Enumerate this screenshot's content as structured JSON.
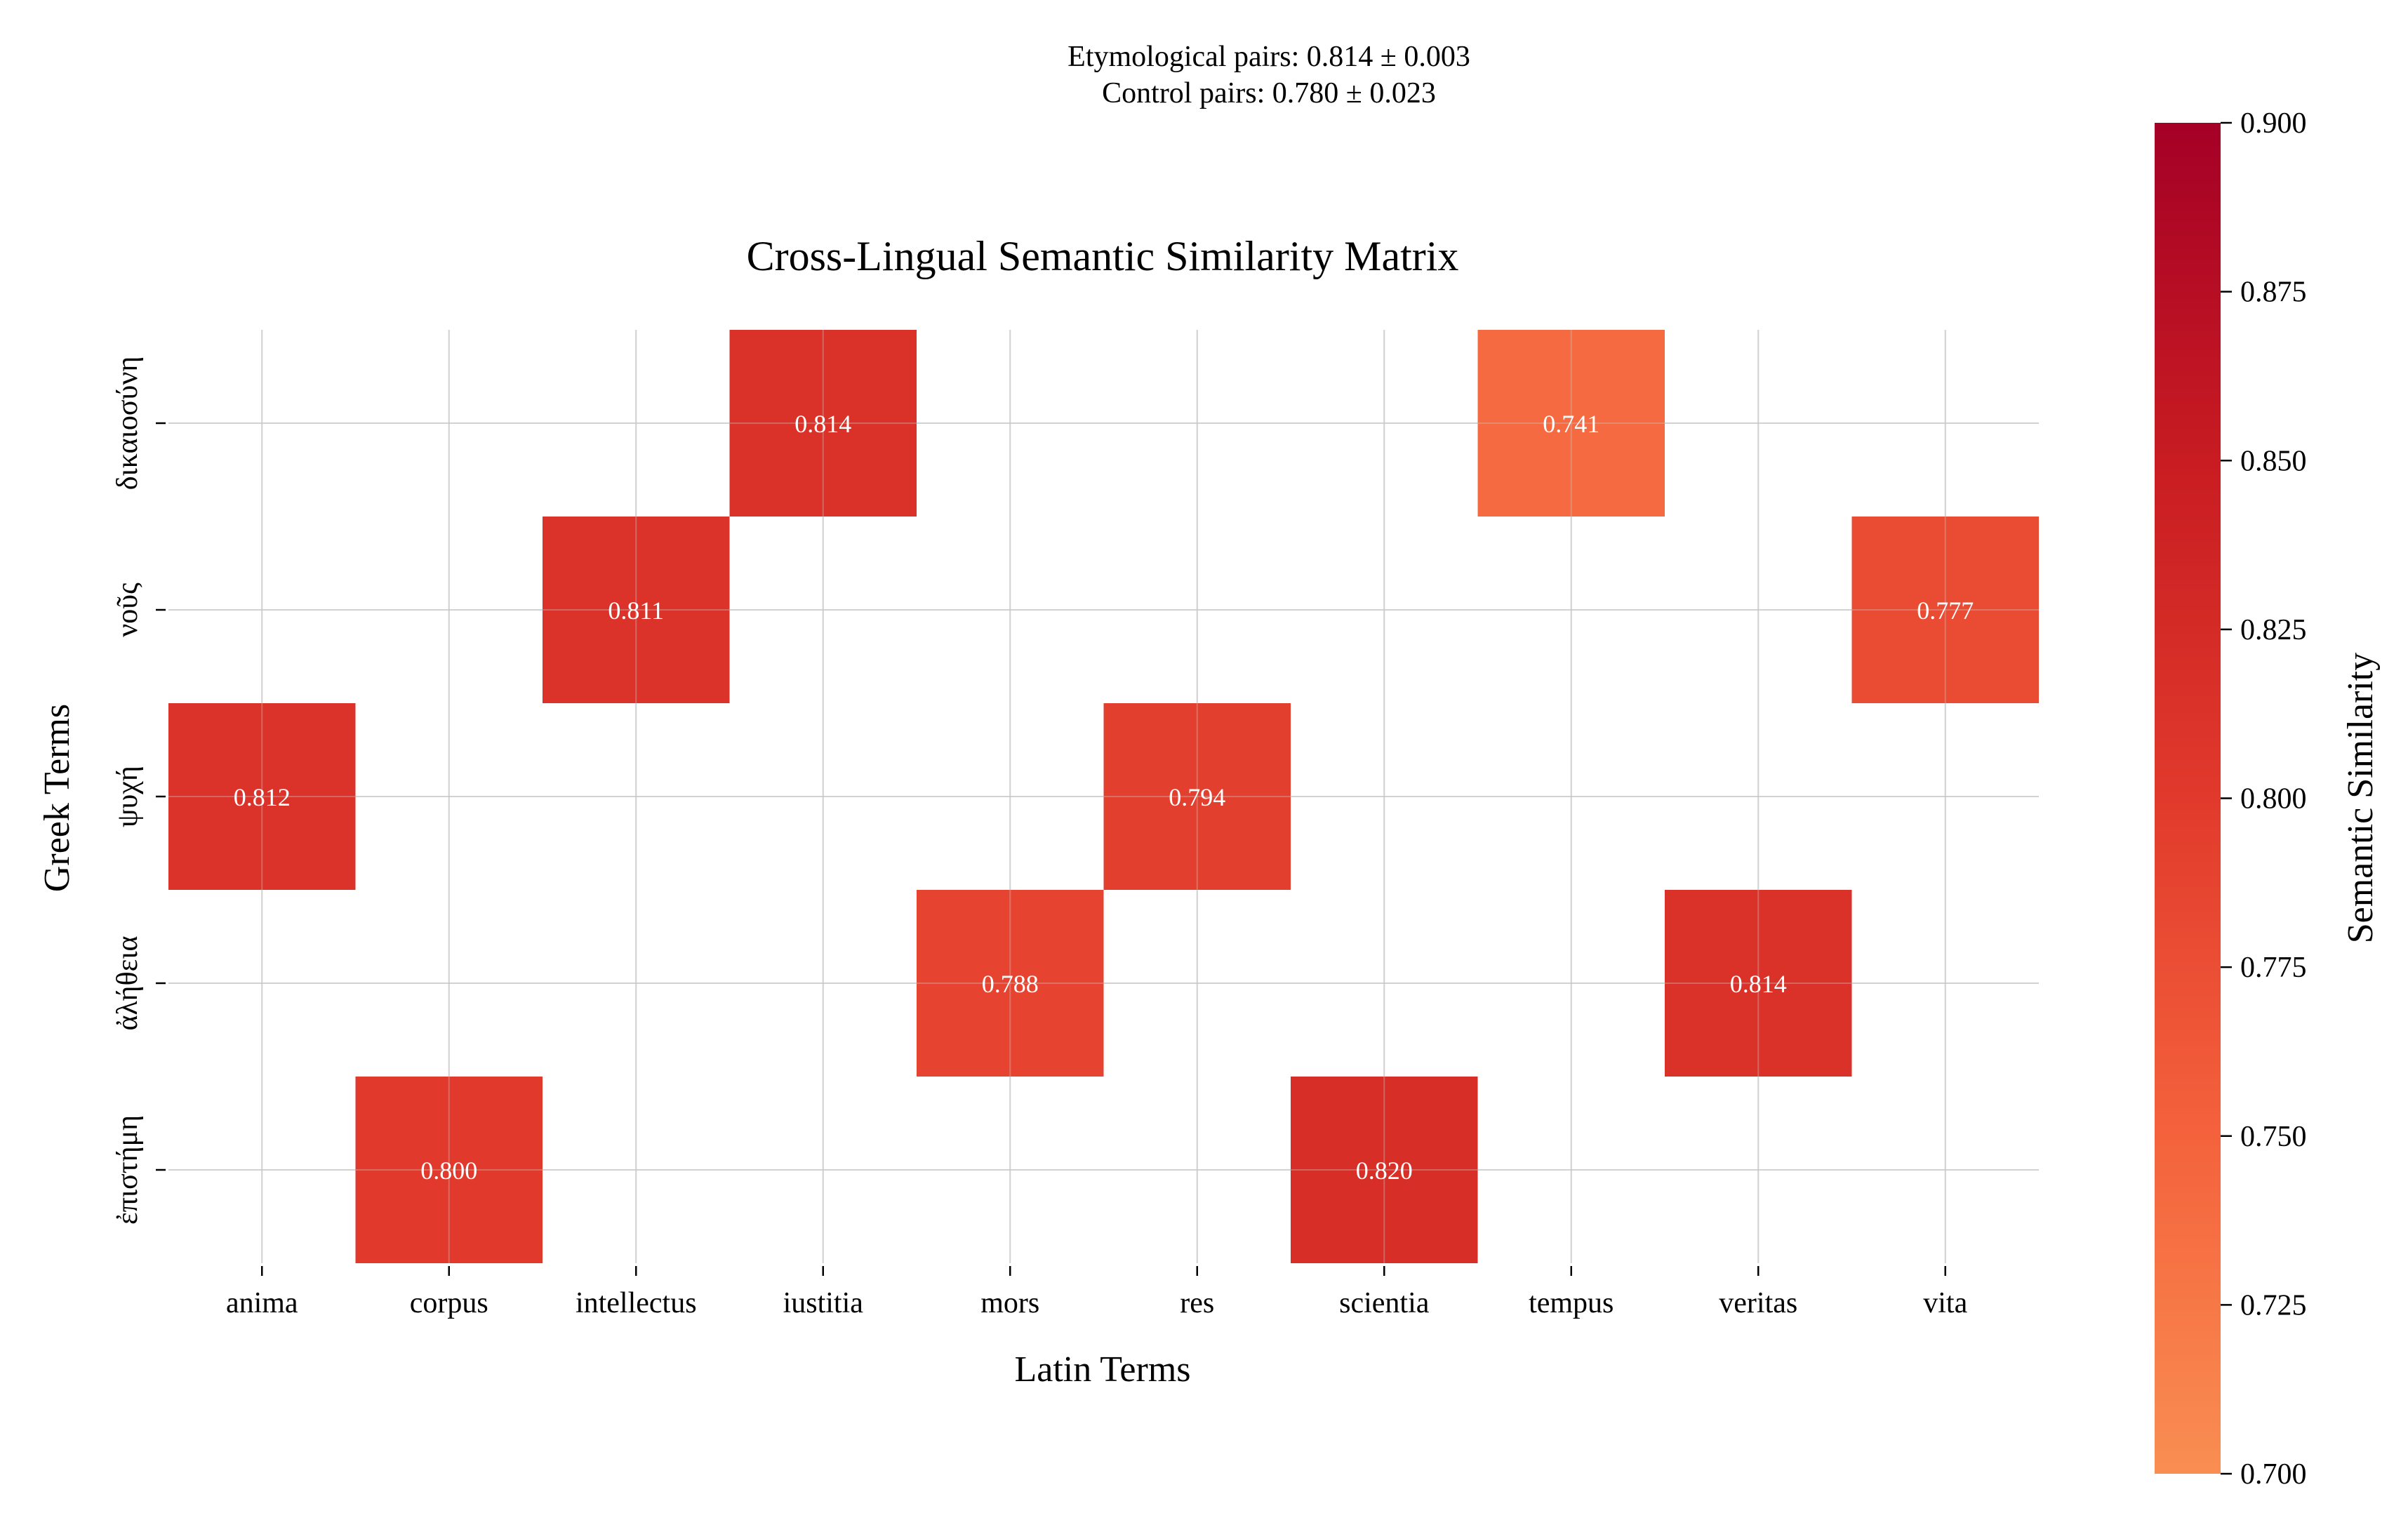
{
  "chart_data": {
    "type": "heatmap",
    "title": "Cross-Lingual Semantic Similarity Matrix",
    "subtitle_lines": [
      "Etymological pairs: 0.814 ± 0.003",
      "Control pairs: 0.780 ± 0.023"
    ],
    "xlabel": "Latin Terms",
    "ylabel": "Greek Terms",
    "x_categories": [
      "anima",
      "corpus",
      "intellectus",
      "iustitia",
      "mors",
      "res",
      "scientia",
      "tempus",
      "veritas",
      "vita"
    ],
    "y_categories": [
      "δικαιοσύνη",
      "νοῦς",
      "ψυχή",
      "ἀλήθεια",
      "ἐπιστήμη"
    ],
    "cells": [
      {
        "x": "iustitia",
        "y": "δικαιοσύνη",
        "value": 0.814,
        "label": "0.814"
      },
      {
        "x": "tempus",
        "y": "δικαιοσύνη",
        "value": 0.741,
        "label": "0.741"
      },
      {
        "x": "intellectus",
        "y": "νοῦς",
        "value": 0.811,
        "label": "0.811"
      },
      {
        "x": "vita",
        "y": "νοῦς",
        "value": 0.777,
        "label": "0.777"
      },
      {
        "x": "anima",
        "y": "ψυχή",
        "value": 0.812,
        "label": "0.812"
      },
      {
        "x": "res",
        "y": "ψυχή",
        "value": 0.794,
        "label": "0.794"
      },
      {
        "x": "mors",
        "y": "ἀλήθεια",
        "value": 0.788,
        "label": "0.788"
      },
      {
        "x": "veritas",
        "y": "ἀλήθεια",
        "value": 0.814,
        "label": "0.814"
      },
      {
        "x": "corpus",
        "y": "ἐπιστήμη",
        "value": 0.8,
        "label": "0.800"
      },
      {
        "x": "scientia",
        "y": "ἐπιστήμη",
        "value": 0.82,
        "label": "0.820"
      }
    ],
    "colorbar": {
      "label": "Semantic Similarity",
      "range": [
        0.7,
        0.9
      ],
      "ticks": [
        "0.700",
        "0.725",
        "0.750",
        "0.775",
        "0.800",
        "0.825",
        "0.850",
        "0.875",
        "0.900"
      ],
      "colormap": "Reds (upper half)",
      "color_stops": [
        "#f98e52",
        "#f4623c",
        "#e13a2c",
        "#c81c22",
        "#a50026"
      ]
    },
    "grid": true,
    "legend": "none"
  }
}
